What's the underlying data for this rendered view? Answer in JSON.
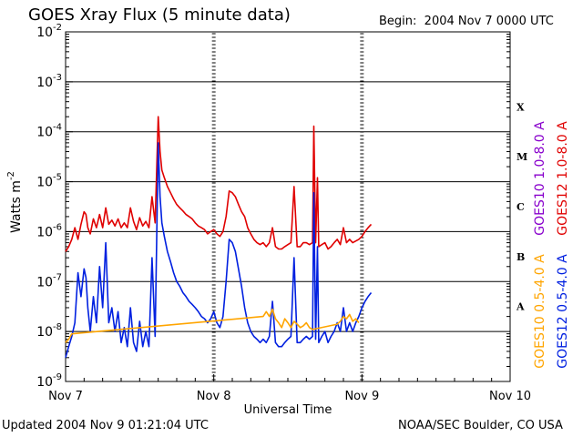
{
  "header": {
    "title": "GOES Xray Flux (5 minute data)",
    "begin_label": "Begin:",
    "begin_value": "2004 Nov 7 0000 UTC"
  },
  "footer": {
    "updated_label": "Updated",
    "updated_value": "2004 Nov  9 01:21:04 UTC",
    "credit": "NOAA/SEC Boulder, CO USA"
  },
  "chart_data": {
    "type": "line",
    "ylabel_base": "Watts m",
    "ylabel_exp": "-2",
    "xlabel": "Universal Time",
    "y_scale": "log",
    "ylim": [
      1e-09,
      0.01
    ],
    "y_ticks": [
      {
        "base": "10",
        "exp": "-9",
        "value": 1e-09
      },
      {
        "base": "10",
        "exp": "-8",
        "value": 1e-08
      },
      {
        "base": "10",
        "exp": "-7",
        "value": 1e-07
      },
      {
        "base": "10",
        "exp": "-6",
        "value": 1e-06
      },
      {
        "base": "10",
        "exp": "-5",
        "value": 1e-05
      },
      {
        "base": "10",
        "exp": "-4",
        "value": 0.0001
      },
      {
        "base": "10",
        "exp": "-3",
        "value": 0.001
      },
      {
        "base": "10",
        "exp": "-2",
        "value": 0.01
      }
    ],
    "x_unit": "hours since 2004 Nov 7 0000 UTC",
    "xlim": [
      0,
      72
    ],
    "x_ticks": [
      {
        "label": "Nov 7",
        "value": 0
      },
      {
        "label": "Nov 8",
        "value": 24
      },
      {
        "label": "Nov 9",
        "value": 48
      },
      {
        "label": "Nov 10",
        "value": 72
      }
    ],
    "flare_classes": [
      {
        "label": "X",
        "value": 0.000316
      },
      {
        "label": "M",
        "value": 3.16e-05
      },
      {
        "label": "C",
        "value": 3.16e-06
      },
      {
        "label": "B",
        "value": 3.16e-07
      },
      {
        "label": "A",
        "value": 3.16e-08
      }
    ],
    "gridlines": [
      1e-08,
      1e-07,
      1e-06,
      1e-05,
      0.0001,
      0.001
    ],
    "series": [
      {
        "name": "GOES12 1.0-8.0 A",
        "color": "#e00000",
        "x": [
          0,
          0.5,
          1,
          1.5,
          2,
          2.5,
          3,
          3.3,
          3.6,
          4,
          4.5,
          5,
          5.5,
          6,
          6.5,
          7,
          7.5,
          8,
          8.5,
          9,
          9.5,
          10,
          10.5,
          11,
          11.5,
          12,
          12.5,
          13,
          13.5,
          14,
          14.5,
          15,
          15.3,
          15.6,
          16,
          16.5,
          17,
          17.5,
          18,
          18.5,
          19,
          19.5,
          20,
          20.5,
          21,
          21.5,
          22,
          22.5,
          23,
          23.5,
          24,
          24.5,
          25,
          25.5,
          26,
          26.5,
          27,
          27.5,
          28,
          28.5,
          29,
          29.5,
          30,
          30.5,
          31,
          31.5,
          32,
          32.5,
          33,
          33.5,
          34,
          34.5,
          35,
          35.5,
          36,
          36.5,
          37,
          37.5,
          38,
          38.5,
          39,
          39.5,
          40,
          40.2,
          40.5,
          40.8,
          41,
          41.5,
          42,
          42.5,
          43,
          43.5,
          44,
          44.5,
          45,
          45.5,
          46,
          46.5,
          47,
          47.5,
          48,
          48.5,
          49,
          49.5
        ],
        "values": [
          4e-07,
          5e-07,
          7e-07,
          1.2e-06,
          7e-07,
          1.4e-06,
          2.5e-06,
          2.2e-06,
          1.2e-06,
          9e-07,
          1.8e-06,
          1.2e-06,
          2.2e-06,
          1.2e-06,
          3e-06,
          1.4e-06,
          1.7e-06,
          1.3e-06,
          1.8e-06,
          1.2e-06,
          1.5e-06,
          1.2e-06,
          3e-06,
          1.6e-06,
          1.1e-06,
          1.9e-06,
          1.3e-06,
          1.6e-06,
          1.2e-06,
          5e-06,
          1.5e-06,
          0.0002,
          4e-05,
          1.7e-05,
          1.2e-05,
          8e-06,
          6e-06,
          4.5e-06,
          3.5e-06,
          3e-06,
          2.6e-06,
          2.2e-06,
          2e-06,
          1.8e-06,
          1.5e-06,
          1.3e-06,
          1.2e-06,
          1.1e-06,
          9e-07,
          1e-06,
          1.1e-06,
          9e-07,
          8e-07,
          1e-06,
          2e-06,
          6.5e-06,
          6e-06,
          5e-06,
          3.5e-06,
          2.5e-06,
          2e-06,
          1.2e-06,
          9e-07,
          7e-07,
          6e-07,
          5.5e-07,
          6e-07,
          5e-07,
          6e-07,
          1.2e-06,
          5e-07,
          4.5e-07,
          4.5e-07,
          5e-07,
          5.5e-07,
          6e-07,
          8e-06,
          5e-07,
          5e-07,
          6e-07,
          6e-07,
          5.5e-07,
          6e-07,
          0.00013,
          6e-07,
          1.2e-05,
          5e-07,
          5.5e-07,
          6e-07,
          4.5e-07,
          5e-07,
          6e-07,
          7e-07,
          5.5e-07,
          1.2e-06,
          6e-07,
          7e-07,
          6e-07,
          6.5e-07,
          7e-07,
          8e-07,
          1e-06,
          1.2e-06,
          1.4e-06
        ]
      },
      {
        "name": "GOES12 0.5-4.0 A",
        "color": "#0020e0",
        "x": [
          0,
          0.5,
          1,
          1.5,
          2,
          2.5,
          3,
          3.3,
          3.6,
          4,
          4.5,
          5,
          5.5,
          6,
          6.5,
          7,
          7.5,
          8,
          8.5,
          9,
          9.5,
          10,
          10.5,
          11,
          11.5,
          12,
          12.5,
          13,
          13.5,
          14,
          14.5,
          15,
          15.3,
          15.6,
          16,
          16.5,
          17,
          17.5,
          18,
          18.5,
          19,
          19.5,
          20,
          20.5,
          21,
          21.5,
          22,
          22.5,
          23,
          23.5,
          24,
          24.5,
          25,
          25.5,
          26,
          26.5,
          27,
          27.5,
          28,
          28.5,
          29,
          29.5,
          30,
          30.5,
          31,
          31.5,
          32,
          32.5,
          33,
          33.5,
          34,
          34.5,
          35,
          35.5,
          36,
          36.5,
          37,
          37.5,
          38,
          38.5,
          39,
          39.5,
          40,
          40.2,
          40.5,
          40.8,
          41,
          41.5,
          42,
          42.5,
          43,
          43.5,
          44,
          44.5,
          45,
          45.5,
          46,
          46.5,
          47,
          47.5,
          48,
          48.5,
          49,
          49.5
        ],
        "values": [
          3e-09,
          5e-09,
          8e-09,
          1.5e-08,
          1.5e-07,
          5e-08,
          1.8e-07,
          1.2e-07,
          3e-08,
          1e-08,
          5e-08,
          1.5e-08,
          2e-07,
          3e-08,
          6e-07,
          1.5e-08,
          3e-08,
          1e-08,
          2.5e-08,
          6e-09,
          1.2e-08,
          5e-09,
          3e-08,
          6e-09,
          4e-09,
          1.6e-08,
          5e-09,
          1e-08,
          5e-09,
          3e-07,
          8e-09,
          6e-05,
          5e-06,
          1.5e-06,
          8e-07,
          4e-07,
          2.5e-07,
          1.5e-07,
          1e-07,
          8e-08,
          6e-08,
          5e-08,
          4e-08,
          3.5e-08,
          3e-08,
          2.5e-08,
          2e-08,
          1.8e-08,
          1.5e-08,
          1.8e-08,
          2.5e-08,
          1.5e-08,
          1.2e-08,
          2e-08,
          1e-07,
          7e-07,
          6e-07,
          4e-07,
          1.8e-07,
          8e-08,
          3e-08,
          1.5e-08,
          1e-08,
          8e-09,
          7e-09,
          6e-09,
          7e-09,
          6e-09,
          8e-09,
          4e-08,
          6e-09,
          5e-09,
          5e-09,
          6e-09,
          7e-09,
          8e-09,
          3e-07,
          6e-09,
          6e-09,
          7e-09,
          8e-09,
          7e-09,
          8e-09,
          6e-06,
          7e-09,
          5e-07,
          6e-09,
          8e-09,
          1e-08,
          6e-09,
          8e-09,
          1e-08,
          1.5e-08,
          1e-08,
          3e-08,
          1e-08,
          1.5e-08,
          1e-08,
          1.5e-08,
          2e-08,
          3e-08,
          4e-08,
          5e-08,
          6e-08
        ]
      },
      {
        "name": "GOES10 0.5-4.0 A",
        "color": "#ffa500",
        "x": [
          0,
          0.5,
          1,
          32,
          32.5,
          33,
          33.5,
          34,
          34.5,
          35,
          35.5,
          36,
          36.5,
          37,
          37.5,
          38,
          38.5,
          39,
          39.5,
          40,
          44,
          44.5,
          45,
          45.5,
          46,
          46.5,
          47,
          47.5
        ],
        "values": [
          6e-09,
          7e-09,
          9e-09,
          2e-08,
          2.5e-08,
          2e-08,
          2.8e-08,
          1.8e-08,
          1.5e-08,
          1.2e-08,
          1.8e-08,
          1.5e-08,
          1.2e-08,
          1.6e-08,
          1.4e-08,
          1.2e-08,
          1.3e-08,
          1.5e-08,
          1.2e-08,
          1.1e-08,
          1.4e-08,
          1.6e-08,
          2e-08,
          1.8e-08,
          2.2e-08,
          1.6e-08,
          1.8e-08,
          1.5e-08
        ]
      },
      {
        "name": "GOES10 1.0-8.0 A",
        "color": "#8800cc",
        "x": [],
        "values": []
      }
    ],
    "legend_right": [
      {
        "name": "GOES10 1.0-8.0 A",
        "color": "#8800cc"
      },
      {
        "name": "GOES12 1.0-8.0 A",
        "color": "#e00000"
      },
      {
        "name": "GOES10 0.5-4.0 A",
        "color": "#ffa500"
      },
      {
        "name": "GOES12 0.5-4.0 A",
        "color": "#0020e0"
      }
    ]
  }
}
